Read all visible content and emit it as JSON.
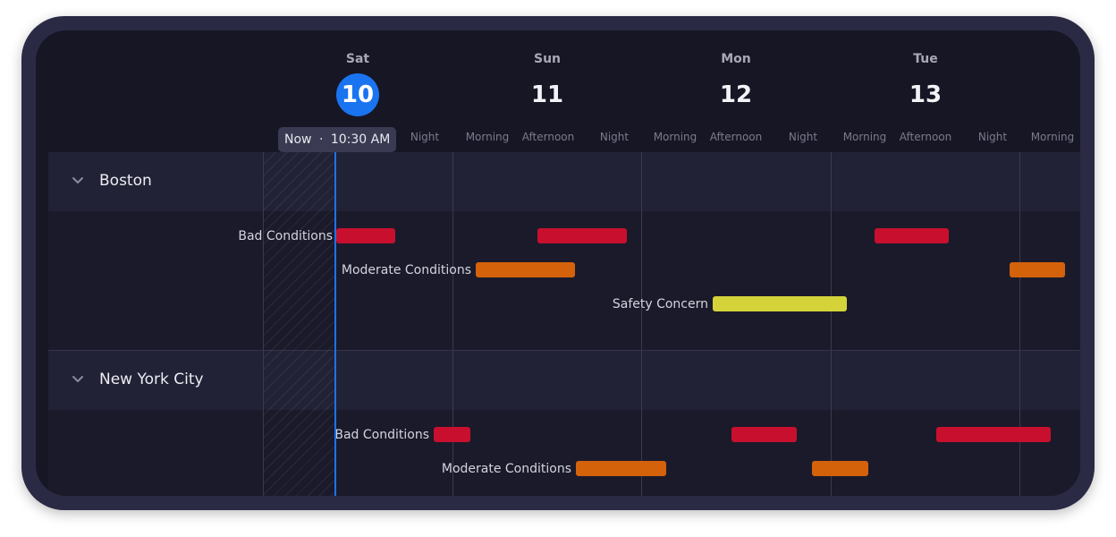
{
  "colors": {
    "accent": "#1a74f0",
    "bad": "#c8102e",
    "moderate": "#d4620b",
    "safety": "#d4d43a"
  },
  "days": [
    {
      "name": "Sat",
      "num": "10",
      "today": true
    },
    {
      "name": "Sun",
      "num": "11",
      "today": false
    },
    {
      "name": "Mon",
      "num": "12",
      "today": false
    },
    {
      "name": "Tue",
      "num": "13",
      "today": false
    }
  ],
  "periods": [
    "Night",
    "Morning",
    "Afternoon",
    "Night",
    "Morning",
    "Afternoon",
    "Night",
    "Morning",
    "Afternoon",
    "Night",
    "Morning"
  ],
  "now": {
    "label": "Now",
    "separator": "·",
    "time": "10:30 AM"
  },
  "groups": [
    {
      "title": "Boston",
      "icon": "chevron-down-icon",
      "rows": [
        {
          "label": "Bad Conditions",
          "type": "bad"
        },
        {
          "label": "Moderate Conditions",
          "type": "moderate"
        },
        {
          "label": "Safety Concern",
          "type": "safety"
        }
      ]
    },
    {
      "title": "New York City",
      "icon": "chevron-down-icon",
      "rows": [
        {
          "label": "Bad Conditions",
          "type": "bad"
        },
        {
          "label": "Moderate Conditions",
          "type": "moderate"
        }
      ]
    }
  ]
}
